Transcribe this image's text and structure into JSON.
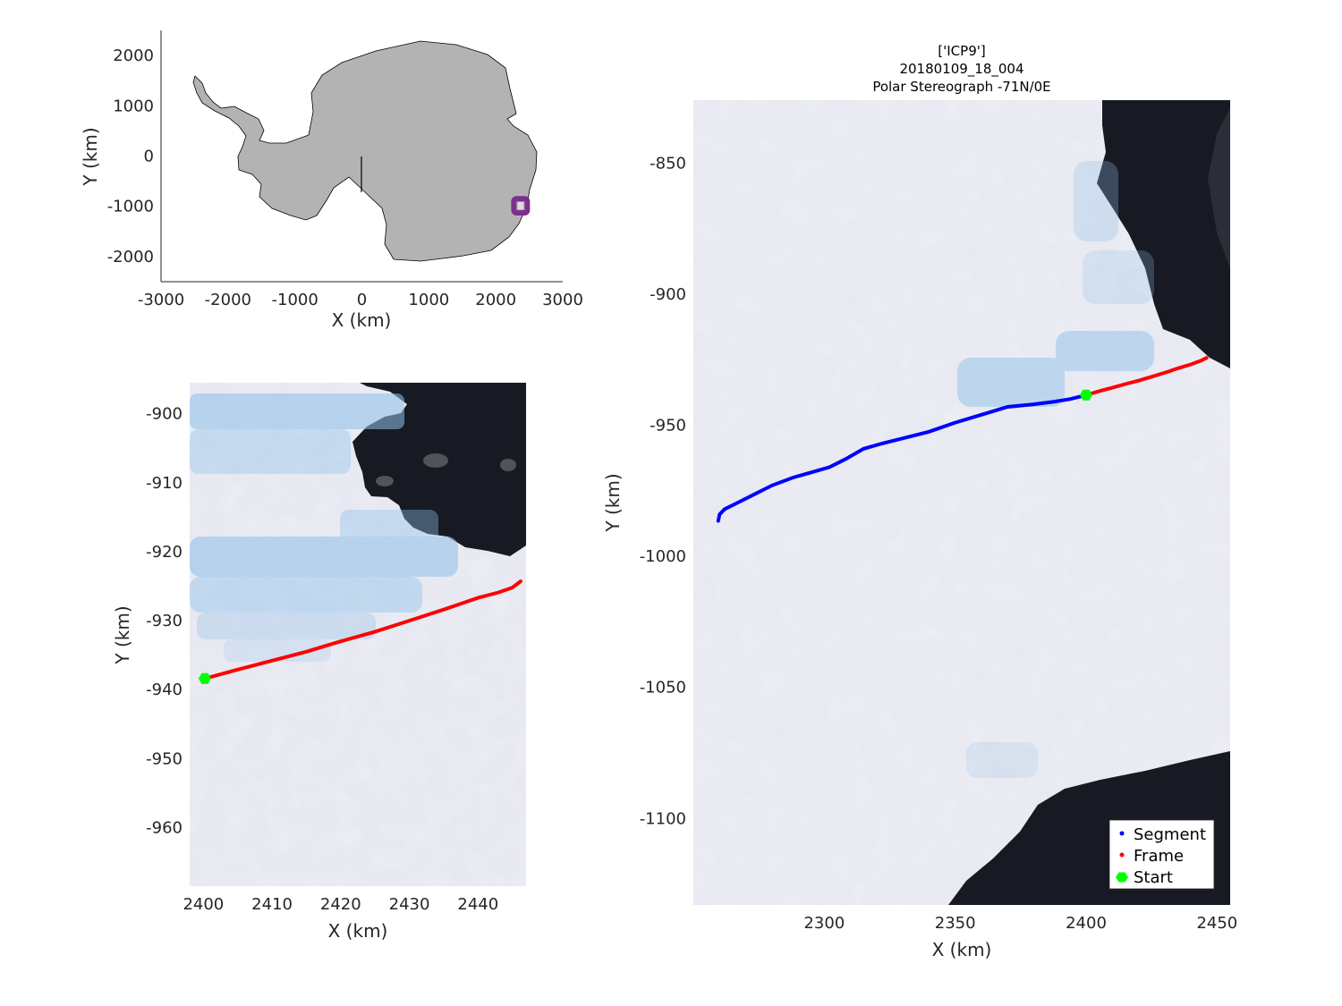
{
  "title": [
    "['ICP9']",
    "20180109_18_004",
    "Polar Stereograph -71N/0E"
  ],
  "colors": {
    "land": "#b3b3b3",
    "region_box": "#7e2f8e",
    "segment": "#0000ff",
    "frame": "#ff0000",
    "start": "#00ff00",
    "ice": "#e9eaf2",
    "ocean": "#161922",
    "melt_ponds": "#8fc0e8"
  },
  "chart_data": [
    {
      "id": "overview",
      "type": "map",
      "xlabel": "X (km)",
      "ylabel": "Y (km)",
      "xlim": [
        -3000,
        3000
      ],
      "ylim": [
        -2500,
        2500
      ],
      "xticks": [
        -3000,
        -2000,
        -1000,
        0,
        1000,
        2000,
        3000
      ],
      "yticks": [
        -2000,
        -1000,
        0,
        1000,
        2000
      ],
      "xtick_labels": [
        "-3000",
        "-2000",
        "-1000",
        "0",
        "1000",
        "2000",
        "3000"
      ],
      "ytick_labels": [
        "-2000",
        "-1000",
        "0",
        "1000",
        "2000"
      ],
      "features": [
        "Antarctica coastline outline (filled gray)",
        "meridian line at x=0"
      ],
      "region_box": {
        "x": [
          2270,
          2470
        ],
        "y": [
          -1130,
          -850
        ]
      },
      "region_marker": {
        "x": 2370,
        "y": -990
      }
    },
    {
      "id": "frame_zoom",
      "type": "line",
      "xlabel": "X (km)",
      "ylabel": "Y (km)",
      "xlim": [
        2398,
        2447
      ],
      "ylim": [
        -968.5,
        -895.5
      ],
      "xticks": [
        2400,
        2410,
        2420,
        2430,
        2440
      ],
      "yticks": [
        -900,
        -910,
        -920,
        -930,
        -940,
        -950,
        -960
      ],
      "xtick_labels": [
        "2400",
        "2410",
        "2420",
        "2430",
        "2440"
      ],
      "ytick_labels": [
        "-900",
        "-910",
        "-920",
        "-930",
        "-940",
        "-950",
        "-960"
      ],
      "background": "satellite imagery",
      "series": [
        {
          "name": "Frame",
          "x": [
            2400.2,
            2405,
            2410,
            2415,
            2420,
            2425,
            2430,
            2435,
            2440,
            2443,
            2445,
            2446.2
          ],
          "y": [
            -938.4,
            -937.1,
            -935.8,
            -934.5,
            -933.0,
            -931.6,
            -930.0,
            -928.4,
            -926.7,
            -925.9,
            -925.2,
            -924.3
          ]
        }
      ],
      "start": {
        "x": 2400.2,
        "y": -938.4
      }
    },
    {
      "id": "segment_map",
      "type": "line",
      "xlabel": "X (km)",
      "ylabel": "Y (km)",
      "xlim": [
        2250,
        2455
      ],
      "ylim": [
        -1133,
        -826
      ],
      "xticks": [
        2300,
        2350,
        2400,
        2450
      ],
      "yticks": [
        -850,
        -900,
        -950,
        -1000,
        -1050,
        -1100
      ],
      "xtick_labels": [
        "2300",
        "2350",
        "2400",
        "2450"
      ],
      "ytick_labels": [
        "-850",
        "-900",
        "-950",
        "-1000",
        "-1050",
        "-1100"
      ],
      "background": "satellite imagery",
      "series": [
        {
          "name": "Segment",
          "x": [
            2259.5,
            2260,
            2262,
            2266,
            2272,
            2280,
            2288,
            2295,
            2302,
            2308,
            2315,
            2322,
            2330,
            2340,
            2350,
            2360,
            2370,
            2380,
            2388,
            2394,
            2400
          ],
          "y": [
            -986.5,
            -984,
            -982,
            -980,
            -977,
            -973,
            -970,
            -968,
            -966,
            -963,
            -959,
            -957,
            -955,
            -952.5,
            -949,
            -946,
            -943,
            -942,
            -941,
            -940,
            -938.5
          ]
        },
        {
          "name": "Frame",
          "x": [
            2400,
            2405,
            2410,
            2415,
            2420,
            2425,
            2430,
            2435,
            2440,
            2444,
            2446
          ],
          "y": [
            -938.5,
            -937,
            -935.7,
            -934.3,
            -933,
            -931.5,
            -930,
            -928.3,
            -926.8,
            -925.3,
            -924.3
          ]
        }
      ],
      "start": {
        "x": 2400,
        "y": -938.5
      },
      "legend": {
        "position": "bottom-right",
        "entries": [
          "Segment",
          "Frame",
          "Start"
        ]
      }
    }
  ]
}
